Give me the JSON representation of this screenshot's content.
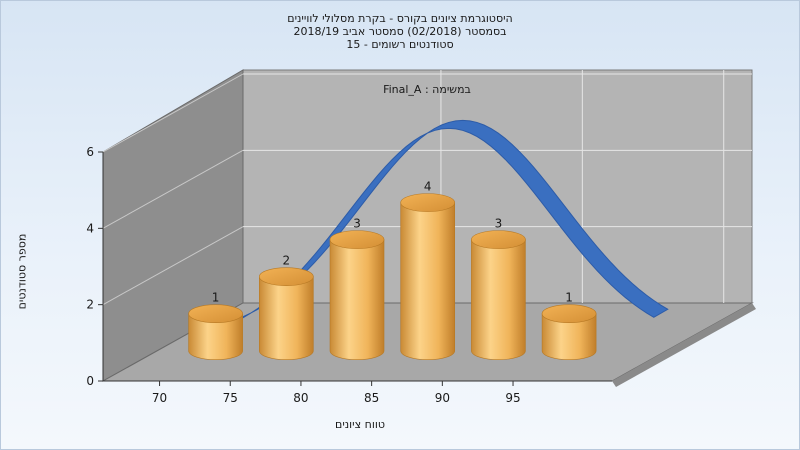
{
  "chart_data": {
    "type": "bar",
    "title": [
      "היסטוגרמת ציונים בקורס - בקרת מסלולי לוויינים",
      "בסמסטר  (02/2018)  סמסטר אביב 2018/19",
      "סטודנטים רשומים - 15"
    ],
    "series_label": "במשימה : Final_A",
    "xlabel": "טווח ציונים",
    "ylabel": "מספר סטודנטים",
    "x_ticks": [
      "70",
      "75",
      "80",
      "85",
      "90",
      "95"
    ],
    "y_ticks": [
      "0",
      "2",
      "4",
      "6"
    ],
    "ylim": [
      0,
      6
    ],
    "bars": [
      {
        "x": 72.5,
        "value": 1,
        "label": "1"
      },
      {
        "x": 77.5,
        "value": 2,
        "label": "2"
      },
      {
        "x": 82.5,
        "value": 3,
        "label": "3"
      },
      {
        "x": 87.5,
        "value": 4,
        "label": "4"
      },
      {
        "x": 92.5,
        "value": 3,
        "label": "3"
      },
      {
        "x": 97.5,
        "value": 1,
        "label": "1"
      }
    ],
    "curve": {
      "type": "normal-fit",
      "color": "#3a6fc0"
    },
    "grid": true,
    "colors": {
      "bar": "#e8a84a",
      "bar_light": "#fcd389",
      "bar_dark": "#c07e2a",
      "back_wall": "#b4b4b4",
      "side_wall": "#8c8c8c",
      "floor": "#a6a6a6"
    }
  }
}
